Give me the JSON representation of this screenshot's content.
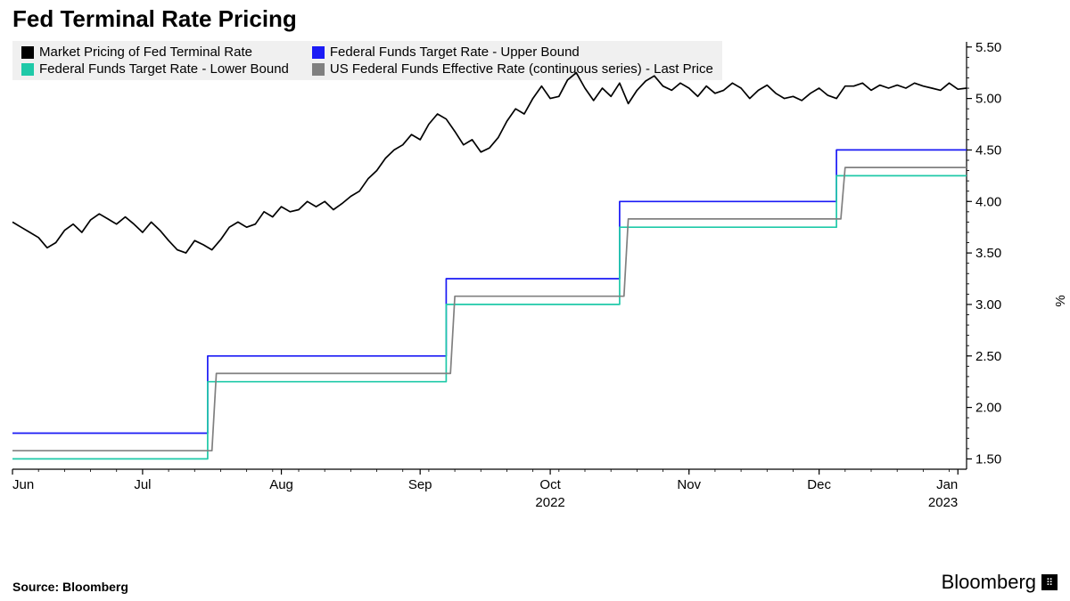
{
  "title": "Fed Terminal Rate Pricing",
  "source": "Source: Bloomberg",
  "brand": "Bloomberg",
  "y_axis_label": "%",
  "legend": {
    "background_color": "#f0f0f0",
    "items": [
      {
        "label": "Market Pricing of Fed Terminal Rate",
        "color": "#000000"
      },
      {
        "label": "Federal Funds Target Rate - Upper Bound",
        "color": "#1a1af5"
      },
      {
        "label": "Federal Funds Target Rate - Lower Bound",
        "color": "#1fc9a8"
      },
      {
        "label": "US Federal Funds Effective Rate (continuous series) - Last Price",
        "color": "#808080"
      }
    ]
  },
  "chart": {
    "type": "line",
    "background_color": "#ffffff",
    "axis_color": "#000000",
    "tick_color": "#000000",
    "line_width": 1.7,
    "xlim": [
      0,
      220
    ],
    "ylim": [
      1.4,
      5.55
    ],
    "yticks": [
      1.5,
      2.0,
      2.5,
      3.0,
      3.5,
      4.0,
      4.5,
      5.0,
      5.5
    ],
    "ytick_labels": [
      "1.50",
      "2.00",
      "2.50",
      "3.00",
      "3.50",
      "4.00",
      "4.50",
      "5.00",
      "5.50"
    ],
    "xticks": [
      0,
      30,
      62,
      94,
      124,
      156,
      186,
      218
    ],
    "xtick_labels": [
      "Jun",
      "Jul",
      "Aug",
      "Sep",
      "Oct",
      "Nov",
      "Dec",
      "Jan"
    ],
    "x_year_markers": [
      {
        "x": 124,
        "label": "2022"
      },
      {
        "x": 218,
        "label": "2023"
      }
    ],
    "series": [
      {
        "name": "upper_bound",
        "color": "#1a1af5",
        "data": [
          [
            0,
            1.75
          ],
          [
            45,
            1.75
          ],
          [
            45,
            2.5
          ],
          [
            46,
            2.5
          ],
          [
            100,
            2.5
          ],
          [
            100,
            3.25
          ],
          [
            101,
            3.25
          ],
          [
            140,
            3.25
          ],
          [
            140,
            4.0
          ],
          [
            141,
            4.0
          ],
          [
            190,
            4.0
          ],
          [
            190,
            4.5
          ],
          [
            191,
            4.5
          ],
          [
            220,
            4.5
          ]
        ]
      },
      {
        "name": "lower_bound",
        "color": "#1fc9a8",
        "data": [
          [
            0,
            1.5
          ],
          [
            45,
            1.5
          ],
          [
            45,
            2.25
          ],
          [
            46,
            2.25
          ],
          [
            100,
            2.25
          ],
          [
            100,
            3.0
          ],
          [
            101,
            3.0
          ],
          [
            140,
            3.0
          ],
          [
            140,
            3.75
          ],
          [
            141,
            3.75
          ],
          [
            190,
            3.75
          ],
          [
            190,
            4.25
          ],
          [
            191,
            4.25
          ],
          [
            220,
            4.25
          ]
        ]
      },
      {
        "name": "effective_rate",
        "color": "#808080",
        "data": [
          [
            0,
            1.58
          ],
          [
            46,
            1.58
          ],
          [
            47,
            2.33
          ],
          [
            48,
            2.33
          ],
          [
            101,
            2.33
          ],
          [
            102,
            3.08
          ],
          [
            103,
            3.08
          ],
          [
            141,
            3.08
          ],
          [
            142,
            3.83
          ],
          [
            143,
            3.83
          ],
          [
            191,
            3.83
          ],
          [
            192,
            4.33
          ],
          [
            193,
            4.33
          ],
          [
            220,
            4.33
          ]
        ]
      },
      {
        "name": "terminal_rate",
        "color": "#000000",
        "data": [
          [
            0,
            3.8
          ],
          [
            2,
            3.75
          ],
          [
            4,
            3.7
          ],
          [
            6,
            3.65
          ],
          [
            8,
            3.55
          ],
          [
            10,
            3.6
          ],
          [
            12,
            3.72
          ],
          [
            14,
            3.78
          ],
          [
            16,
            3.7
          ],
          [
            18,
            3.82
          ],
          [
            20,
            3.88
          ],
          [
            22,
            3.83
          ],
          [
            24,
            3.78
          ],
          [
            26,
            3.85
          ],
          [
            28,
            3.78
          ],
          [
            30,
            3.7
          ],
          [
            32,
            3.8
          ],
          [
            34,
            3.72
          ],
          [
            36,
            3.62
          ],
          [
            38,
            3.53
          ],
          [
            40,
            3.5
          ],
          [
            42,
            3.62
          ],
          [
            44,
            3.58
          ],
          [
            46,
            3.53
          ],
          [
            48,
            3.63
          ],
          [
            50,
            3.75
          ],
          [
            52,
            3.8
          ],
          [
            54,
            3.75
          ],
          [
            56,
            3.78
          ],
          [
            58,
            3.9
          ],
          [
            60,
            3.85
          ],
          [
            62,
            3.95
          ],
          [
            64,
            3.9
          ],
          [
            66,
            3.92
          ],
          [
            68,
            4.0
          ],
          [
            70,
            3.95
          ],
          [
            72,
            4.0
          ],
          [
            74,
            3.92
          ],
          [
            76,
            3.98
          ],
          [
            78,
            4.05
          ],
          [
            80,
            4.1
          ],
          [
            82,
            4.22
          ],
          [
            84,
            4.3
          ],
          [
            86,
            4.42
          ],
          [
            88,
            4.5
          ],
          [
            90,
            4.55
          ],
          [
            92,
            4.65
          ],
          [
            94,
            4.6
          ],
          [
            96,
            4.75
          ],
          [
            98,
            4.85
          ],
          [
            100,
            4.8
          ],
          [
            102,
            4.68
          ],
          [
            104,
            4.55
          ],
          [
            106,
            4.6
          ],
          [
            108,
            4.48
          ],
          [
            110,
            4.52
          ],
          [
            112,
            4.62
          ],
          [
            114,
            4.78
          ],
          [
            116,
            4.9
          ],
          [
            118,
            4.85
          ],
          [
            120,
            5.0
          ],
          [
            122,
            5.12
          ],
          [
            124,
            5.0
          ],
          [
            126,
            5.02
          ],
          [
            128,
            5.18
          ],
          [
            130,
            5.25
          ],
          [
            132,
            5.1
          ],
          [
            134,
            4.98
          ],
          [
            136,
            5.1
          ],
          [
            138,
            5.02
          ],
          [
            140,
            5.15
          ],
          [
            142,
            4.95
          ],
          [
            144,
            5.08
          ],
          [
            146,
            5.17
          ],
          [
            148,
            5.22
          ],
          [
            150,
            5.12
          ],
          [
            152,
            5.08
          ],
          [
            154,
            5.15
          ],
          [
            156,
            5.1
          ],
          [
            158,
            5.02
          ],
          [
            160,
            5.12
          ],
          [
            162,
            5.05
          ],
          [
            164,
            5.08
          ],
          [
            166,
            5.15
          ],
          [
            168,
            5.1
          ],
          [
            170,
            5.0
          ],
          [
            172,
            5.08
          ],
          [
            174,
            5.13
          ],
          [
            176,
            5.05
          ],
          [
            178,
            5.0
          ],
          [
            180,
            5.02
          ],
          [
            182,
            4.98
          ],
          [
            184,
            5.05
          ],
          [
            186,
            5.1
          ],
          [
            188,
            5.03
          ],
          [
            190,
            5.0
          ],
          [
            192,
            5.12
          ],
          [
            194,
            5.12
          ],
          [
            196,
            5.15
          ],
          [
            198,
            5.08
          ],
          [
            200,
            5.13
          ],
          [
            202,
            5.1
          ],
          [
            204,
            5.13
          ],
          [
            206,
            5.1
          ],
          [
            208,
            5.15
          ],
          [
            210,
            5.12
          ],
          [
            212,
            5.1
          ],
          [
            214,
            5.08
          ],
          [
            216,
            5.15
          ],
          [
            218,
            5.09
          ],
          [
            220,
            5.1
          ]
        ]
      }
    ]
  },
  "typography": {
    "title_fontsize": 26,
    "title_weight": "bold",
    "legend_fontsize": 15,
    "tick_fontsize": 15,
    "source_fontsize": 14,
    "brand_fontsize": 22
  }
}
